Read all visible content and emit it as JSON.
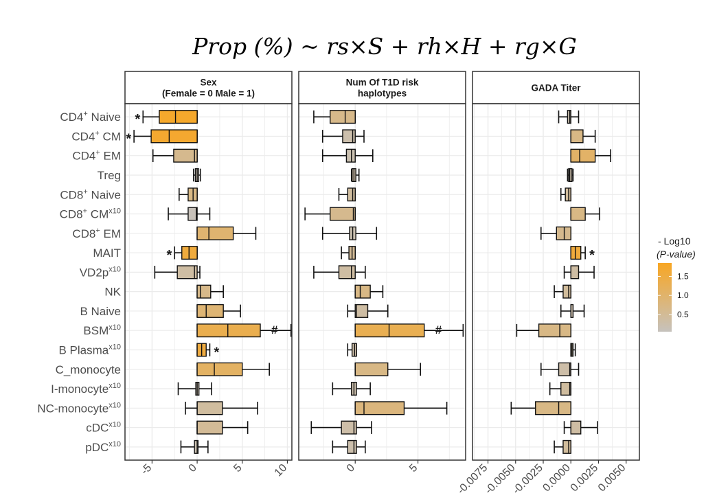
{
  "chart_data": {
    "type": "boxplot-facet",
    "title": "Prop (%) ~ rs×S + rh×H  + rg×G",
    "categories": [
      {
        "base": "CD4",
        "sup": "+",
        "rest": " Naive",
        "suffix": ""
      },
      {
        "base": "CD4",
        "sup": "+",
        "rest": " CM",
        "suffix": ""
      },
      {
        "base": "CD4",
        "sup": "+",
        "rest": " EM",
        "suffix": ""
      },
      {
        "base": "Treg",
        "sup": "",
        "rest": "",
        "suffix": ""
      },
      {
        "base": "CD8",
        "sup": "+",
        "rest": " Naive",
        "suffix": ""
      },
      {
        "base": "CD8",
        "sup": "+",
        "rest": " CM",
        "suffix": "x10"
      },
      {
        "base": "CD8",
        "sup": "+",
        "rest": " EM",
        "suffix": ""
      },
      {
        "base": "MAIT",
        "sup": "",
        "rest": "",
        "suffix": ""
      },
      {
        "base": "VD2p",
        "sup": "",
        "rest": "",
        "suffix": "x10"
      },
      {
        "base": "NK",
        "sup": "",
        "rest": "",
        "suffix": ""
      },
      {
        "base": "B Naive",
        "sup": "",
        "rest": "",
        "suffix": ""
      },
      {
        "base": "BSM",
        "sup": "",
        "rest": "",
        "suffix": "x10"
      },
      {
        "base": "B Plasma",
        "sup": "",
        "rest": "",
        "suffix": "x10"
      },
      {
        "base": "C_monocyte",
        "sup": "",
        "rest": "",
        "suffix": ""
      },
      {
        "base": "I-monocyte",
        "sup": "",
        "rest": "",
        "suffix": "x10"
      },
      {
        "base": "NC-monocyte",
        "sup": "",
        "rest": "",
        "suffix": "x10"
      },
      {
        "base": "cDC",
        "sup": "",
        "rest": "",
        "suffix": "x10"
      },
      {
        "base": "pDC",
        "sup": "",
        "rest": "",
        "suffix": "x10"
      }
    ],
    "panels": [
      {
        "strip_lines": [
          "Sex",
          "(Female = 0 Male = 1)"
        ],
        "xlim": [
          -8,
          10.5
        ],
        "ticks": [
          -5,
          0,
          5,
          10
        ],
        "tick_labels": [
          "-5",
          "0",
          "5",
          "10"
        ],
        "series": [
          {
            "box": [
              -4.2,
              0
            ],
            "median": -2.4,
            "whisker": [
              -6.0,
              0
            ],
            "log10p": 1.75,
            "annot": "*"
          },
          {
            "box": [
              -5.1,
              0
            ],
            "median": -3.1,
            "whisker": [
              -7.0,
              0
            ],
            "log10p": 1.7,
            "annot": "*"
          },
          {
            "box": [
              -2.6,
              0
            ],
            "median": -0.3,
            "whisker": [
              -4.9,
              0
            ],
            "log10p": 0.6,
            "annot": ""
          },
          {
            "box": [
              -0.2,
              0.15
            ],
            "median": 0.0,
            "whisker": [
              -0.4,
              0.35
            ],
            "log10p": 0.2,
            "annot": ""
          },
          {
            "box": [
              -1.0,
              0
            ],
            "median": -0.45,
            "whisker": [
              -2.0,
              0
            ],
            "log10p": 0.7,
            "annot": ""
          },
          {
            "box": [
              -1.0,
              0
            ],
            "median": -0.1,
            "whisker": [
              -3.2,
              1.4
            ],
            "log10p": 0.1,
            "annot": ""
          },
          {
            "box": [
              0,
              4.0
            ],
            "median": 1.3,
            "whisker": [
              0,
              6.5
            ],
            "log10p": 0.95,
            "annot": ""
          },
          {
            "box": [
              -1.7,
              0
            ],
            "median": -0.9,
            "whisker": [
              -2.5,
              0
            ],
            "log10p": 1.55,
            "annot": "*"
          },
          {
            "box": [
              -2.2,
              0
            ],
            "median": -0.3,
            "whisker": [
              -4.7,
              0.3
            ],
            "log10p": 0.35,
            "annot": ""
          },
          {
            "box": [
              0,
              1.5
            ],
            "median": 0.35,
            "whisker": [
              0,
              2.9
            ],
            "log10p": 0.65,
            "annot": ""
          },
          {
            "box": [
              0,
              2.9
            ],
            "median": 1.0,
            "whisker": [
              0,
              4.8
            ],
            "log10p": 0.9,
            "annot": ""
          },
          {
            "box": [
              0,
              7.0
            ],
            "median": 3.4,
            "whisker": [
              0,
              10.4
            ],
            "log10p": 1.35,
            "annot": "#"
          },
          {
            "box": [
              0,
              1.0
            ],
            "median": 0.5,
            "whisker": [
              0,
              1.4
            ],
            "log10p": 1.5,
            "annot": "*"
          },
          {
            "box": [
              0,
              5.0
            ],
            "median": 1.9,
            "whisker": [
              0,
              8.0
            ],
            "log10p": 1.1,
            "annot": ""
          },
          {
            "box": [
              -0.15,
              0.2
            ],
            "median": 0.0,
            "whisker": [
              -2.1,
              1.6
            ],
            "log10p": 0.2,
            "annot": ""
          },
          {
            "box": [
              0,
              2.8
            ],
            "median": 0.0,
            "whisker": [
              -1.3,
              6.7
            ],
            "log10p": 0.4,
            "annot": ""
          },
          {
            "box": [
              0,
              2.8
            ],
            "median": 0.0,
            "whisker": [
              0,
              5.6
            ],
            "log10p": 0.5,
            "annot": ""
          },
          {
            "box": [
              -0.3,
              0.1
            ],
            "median": 0.0,
            "whisker": [
              -1.8,
              1.2
            ],
            "log10p": 0.2,
            "annot": ""
          }
        ]
      },
      {
        "strip_lines": [
          "Num Of T1D risk",
          "haplotypes"
        ],
        "xlim": [
          -4.5,
          8.8
        ],
        "ticks": [
          0,
          5
        ],
        "tick_labels": [
          "0",
          "5"
        ],
        "series": [
          {
            "box": [
              -2.0,
              0
            ],
            "median": -0.8,
            "whisker": [
              -3.3,
              0
            ],
            "log10p": 0.65,
            "annot": ""
          },
          {
            "box": [
              -1.0,
              0
            ],
            "median": -0.2,
            "whisker": [
              -2.6,
              0.7
            ],
            "log10p": 0.25,
            "annot": ""
          },
          {
            "box": [
              -0.7,
              0
            ],
            "median": -0.3,
            "whisker": [
              -2.6,
              1.4
            ],
            "log10p": 0.2,
            "annot": ""
          },
          {
            "box": [
              -0.25,
              0.05
            ],
            "median": -0.1,
            "whisker": [
              -0.3,
              0.3
            ],
            "log10p": 0.3,
            "annot": ""
          },
          {
            "box": [
              -0.6,
              0
            ],
            "median": -0.2,
            "whisker": [
              -1.3,
              0
            ],
            "log10p": 0.4,
            "annot": ""
          },
          {
            "box": [
              -2.0,
              0
            ],
            "median": -0.15,
            "whisker": [
              -4.0,
              0
            ],
            "log10p": 0.6,
            "annot": ""
          },
          {
            "box": [
              -0.45,
              0.05
            ],
            "median": -0.2,
            "whisker": [
              -2.6,
              1.7
            ],
            "log10p": 0.2,
            "annot": ""
          },
          {
            "box": [
              -0.5,
              0
            ],
            "median": -0.25,
            "whisker": [
              -1.1,
              0
            ],
            "log10p": 0.5,
            "annot": ""
          },
          {
            "box": [
              -1.3,
              0
            ],
            "median": -0.3,
            "whisker": [
              -3.3,
              0.8
            ],
            "log10p": 0.35,
            "annot": ""
          },
          {
            "box": [
              0,
              1.2
            ],
            "median": 0.4,
            "whisker": [
              0,
              2.2
            ],
            "log10p": 0.7,
            "annot": ""
          },
          {
            "box": [
              0,
              1.0
            ],
            "median": 0.1,
            "whisker": [
              -0.6,
              2.6
            ],
            "log10p": 0.35,
            "annot": ""
          },
          {
            "box": [
              0,
              5.5
            ],
            "median": 2.7,
            "whisker": [
              0,
              8.6
            ],
            "log10p": 1.3,
            "annot": "#"
          },
          {
            "box": [
              -0.25,
              0.1
            ],
            "median": -0.05,
            "whisker": [
              -0.6,
              0.1
            ],
            "log10p": 0.3,
            "annot": ""
          },
          {
            "box": [
              0,
              2.6
            ],
            "median": 0.0,
            "whisker": [
              0,
              5.2
            ],
            "log10p": 0.7,
            "annot": ""
          },
          {
            "box": [
              -0.3,
              0.1
            ],
            "median": -0.1,
            "whisker": [
              -1.8,
              1.2
            ],
            "log10p": 0.25,
            "annot": ""
          },
          {
            "box": [
              0,
              3.9
            ],
            "median": 0.7,
            "whisker": [
              0,
              7.3
            ],
            "log10p": 0.8,
            "annot": ""
          },
          {
            "box": [
              -1.1,
              0.1
            ],
            "median": -0.1,
            "whisker": [
              -3.5,
              1.3
            ],
            "log10p": 0.3,
            "annot": ""
          },
          {
            "box": [
              -0.6,
              0.1
            ],
            "median": -0.1,
            "whisker": [
              -1.8,
              0.8
            ],
            "log10p": 0.25,
            "annot": ""
          }
        ]
      },
      {
        "strip_lines": [
          "GADA Titer"
        ],
        "xlim": [
          -0.0089,
          0.0062
        ],
        "ticks": [
          -0.0075,
          -0.005,
          -0.0025,
          0.0,
          0.0025,
          0.005
        ],
        "tick_labels": [
          "-0.0075",
          "-0.0050",
          "-0.0025",
          "0.0000",
          "0.0025",
          "0.0050"
        ],
        "series": [
          {
            "box": [
              -0.0003,
              0.0
            ],
            "median": -0.0001,
            "whisker": [
              -0.0011,
              0.0007
            ],
            "log10p": 0.2,
            "annot": ""
          },
          {
            "box": [
              0.0,
              0.0011
            ],
            "median": 0.0,
            "whisker": [
              0.0,
              0.0022
            ],
            "log10p": 0.7,
            "annot": ""
          },
          {
            "box": [
              0.0,
              0.0022
            ],
            "median": 0.0008,
            "whisker": [
              0.0,
              0.0036
            ],
            "log10p": 1.05,
            "annot": ""
          },
          {
            "box": [
              -0.0002,
              0.0001
            ],
            "median": -0.0001,
            "whisker": [
              -0.0003,
              0.0002
            ],
            "log10p": 0.25,
            "annot": ""
          },
          {
            "box": [
              -0.0005,
              0.0
            ],
            "median": -0.0002,
            "whisker": [
              -0.0009,
              0.0
            ],
            "log10p": 0.45,
            "annot": ""
          },
          {
            "box": [
              0.0,
              0.0013
            ],
            "median": 0.0,
            "whisker": [
              0.0,
              0.0026
            ],
            "log10p": 0.7,
            "annot": ""
          },
          {
            "box": [
              -0.0013,
              0.0
            ],
            "median": -0.0006,
            "whisker": [
              -0.0027,
              0.0
            ],
            "log10p": 0.6,
            "annot": ""
          },
          {
            "box": [
              0.0,
              0.0009
            ],
            "median": 0.0004,
            "whisker": [
              0.0,
              0.0013
            ],
            "log10p": 1.55,
            "annot": "*"
          },
          {
            "box": [
              0.0,
              0.0007
            ],
            "median": 0.0,
            "whisker": [
              -0.0006,
              0.0021
            ],
            "log10p": 0.35,
            "annot": ""
          },
          {
            "box": [
              -0.0007,
              0.0
            ],
            "median": -0.0002,
            "whisker": [
              -0.0015,
              0.0
            ],
            "log10p": 0.45,
            "annot": ""
          },
          {
            "box": [
              0.0,
              0.0002
            ],
            "median": 0.0,
            "whisker": [
              -0.0009,
              0.0012
            ],
            "log10p": 0.25,
            "annot": ""
          },
          {
            "box": [
              -0.0029,
              0.0
            ],
            "median": -0.001,
            "whisker": [
              -0.0049,
              0.0
            ],
            "log10p": 0.7,
            "annot": ""
          },
          {
            "box": [
              0.0,
              0.0002
            ],
            "median": 0.0001,
            "whisker": [
              0.0,
              0.0004
            ],
            "log10p": 0.5,
            "annot": ""
          },
          {
            "box": [
              -0.0011,
              0.0
            ],
            "median": -0.0001,
            "whisker": [
              -0.0027,
              0.0007
            ],
            "log10p": 0.3,
            "annot": ""
          },
          {
            "box": [
              -0.0009,
              0.0
            ],
            "median": -0.0001,
            "whisker": [
              -0.0019,
              0.0
            ],
            "log10p": 0.4,
            "annot": ""
          },
          {
            "box": [
              -0.0032,
              0.0
            ],
            "median": -0.0011,
            "whisker": [
              -0.0054,
              0.0
            ],
            "log10p": 0.7,
            "annot": ""
          },
          {
            "box": [
              0.0,
              0.0009
            ],
            "median": 0.0,
            "whisker": [
              -0.0006,
              0.0024
            ],
            "log10p": 0.35,
            "annot": ""
          },
          {
            "box": [
              -0.0007,
              0.0
            ],
            "median": -0.0002,
            "whisker": [
              -0.0015,
              0.0
            ],
            "log10p": 0.45,
            "annot": ""
          }
        ]
      }
    ],
    "legend": {
      "title_line1": "- Log10",
      "title_line2": "(P-value)",
      "ticks": [
        1.5,
        1.0,
        0.5
      ],
      "tick_labels": [
        "1.5",
        "1.0",
        "0.5"
      ],
      "range": [
        0.05,
        1.85
      ],
      "low_color": "#c6c2bd",
      "high_color": "#f8a623"
    }
  }
}
